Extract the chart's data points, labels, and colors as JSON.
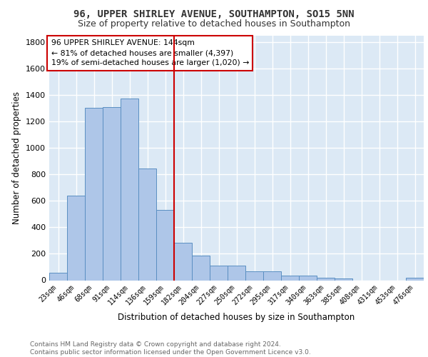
{
  "title1": "96, UPPER SHIRLEY AVENUE, SOUTHAMPTON, SO15 5NN",
  "title2": "Size of property relative to detached houses in Southampton",
  "xlabel": "Distribution of detached houses by size in Southampton",
  "ylabel": "Number of detached properties",
  "footer1": "Contains HM Land Registry data © Crown copyright and database right 2024.",
  "footer2": "Contains public sector information licensed under the Open Government Licence v3.0.",
  "annotation_line1": "96 UPPER SHIRLEY AVENUE: 144sqm",
  "annotation_line2": "← 81% of detached houses are smaller (4,397)",
  "annotation_line3": "19% of semi-detached houses are larger (1,020) →",
  "bar_labels": [
    "23sqm",
    "46sqm",
    "68sqm",
    "91sqm",
    "114sqm",
    "136sqm",
    "159sqm",
    "182sqm",
    "204sqm",
    "227sqm",
    "250sqm",
    "272sqm",
    "295sqm",
    "317sqm",
    "340sqm",
    "363sqm",
    "385sqm",
    "408sqm",
    "431sqm",
    "453sqm",
    "476sqm"
  ],
  "bar_values": [
    55,
    640,
    1305,
    1310,
    1375,
    845,
    530,
    285,
    185,
    110,
    110,
    65,
    65,
    35,
    35,
    20,
    15,
    0,
    0,
    0,
    20
  ],
  "bar_color": "#aec6e8",
  "bar_edge_color": "#5a8fc2",
  "bar_width": 1.0,
  "vline_x": 6.48,
  "vline_color": "#cc0000",
  "ylim": [
    0,
    1850
  ],
  "yticks": [
    0,
    200,
    400,
    600,
    800,
    1000,
    1200,
    1400,
    1600,
    1800
  ],
  "grid_color": "#ffffff",
  "bg_color": "#dce9f5",
  "title1_fontsize": 10,
  "title2_fontsize": 9,
  "xlabel_fontsize": 8.5,
  "ylabel_fontsize": 8.5,
  "footer_fontsize": 6.5,
  "annotation_fontsize": 7.8,
  "annotation_box_color": "#ffffff",
  "annotation_box_edge": "#cc0000"
}
